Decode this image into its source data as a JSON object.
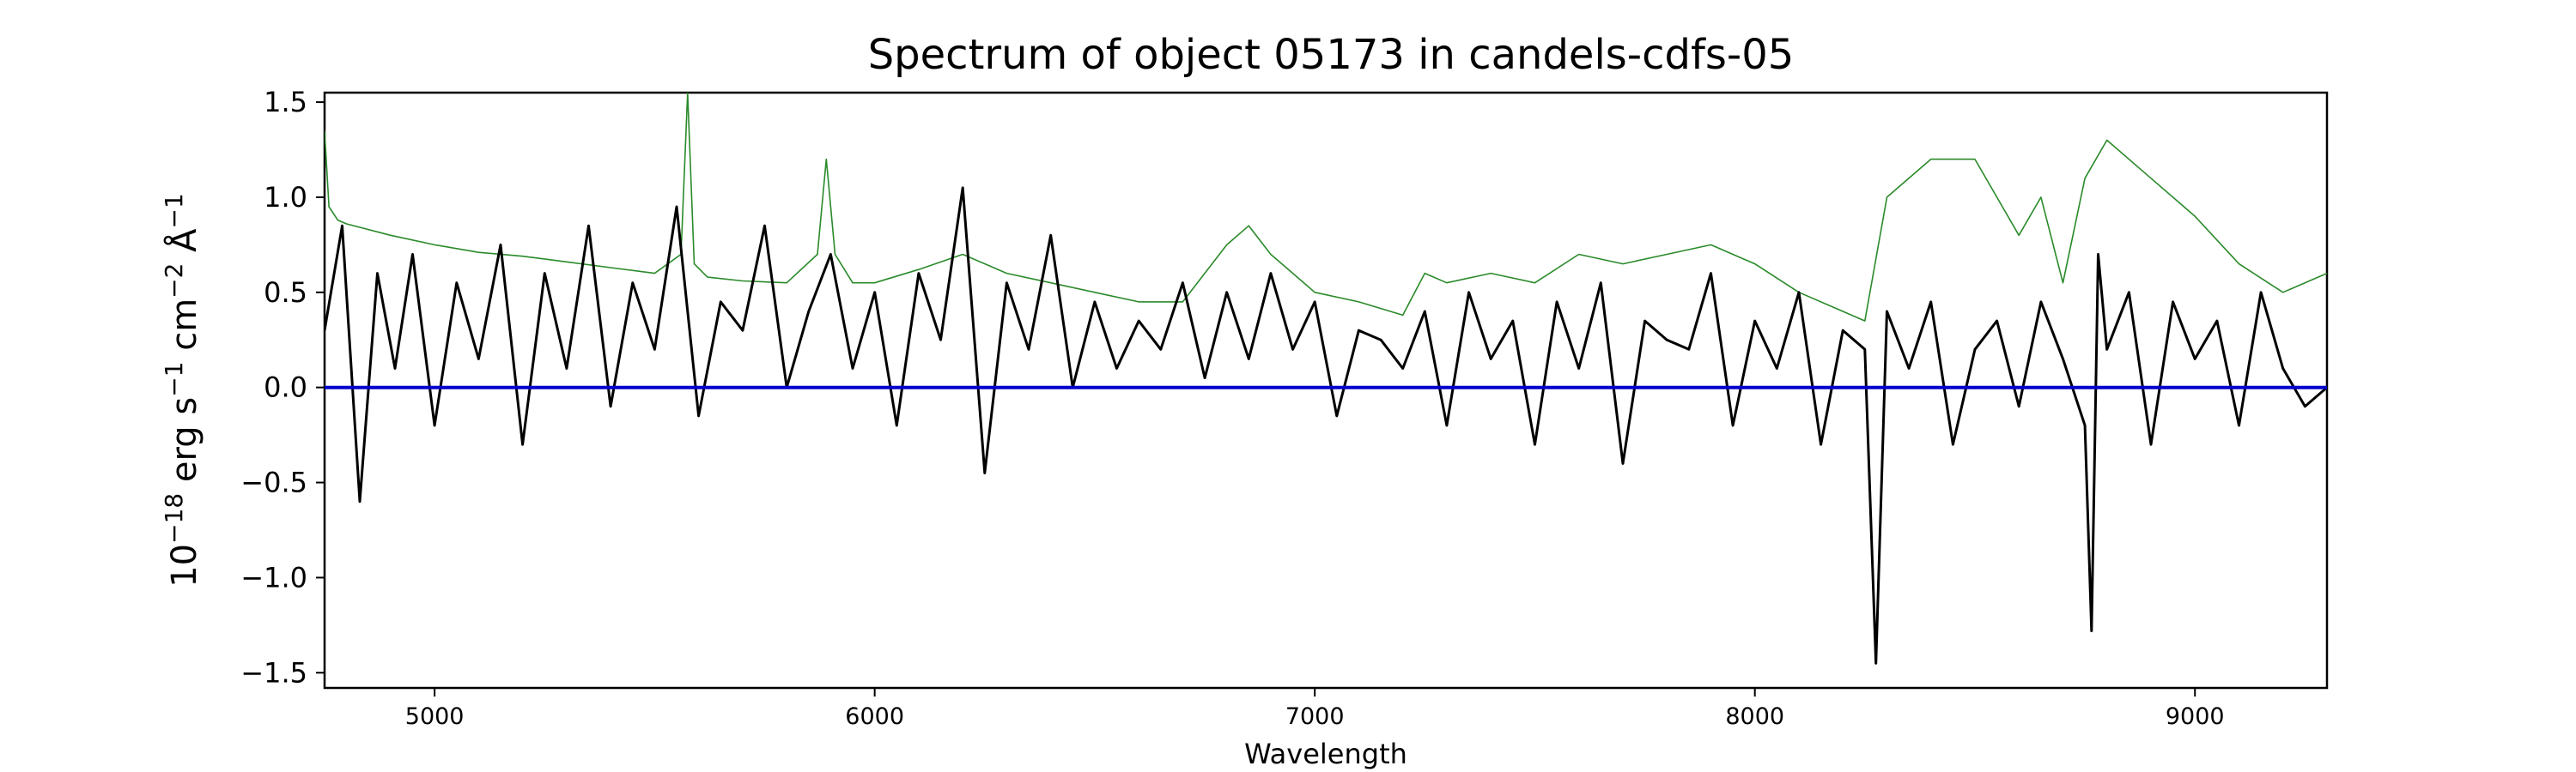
{
  "chart_data": {
    "type": "line",
    "title": "Spectrum of object 05173 in candels-cdfs-05",
    "xlabel": "Wavelength",
    "ylabel": {
      "base": "10",
      "exp": "−18",
      "text1": " erg s",
      "exp2": "−1",
      "text2": " cm",
      "exp3": "−2",
      "text3": " Å",
      "exp4": "−1"
    },
    "xlim": [
      4750,
      9300
    ],
    "ylim": [
      -1.58,
      1.55
    ],
    "xticks": [
      5000,
      6000,
      7000,
      8000,
      9000
    ],
    "xtick_labels": [
      "5000",
      "6000",
      "7000",
      "8000",
      "9000"
    ],
    "yticks": [
      -1.5,
      -1.0,
      -0.5,
      0.0,
      0.5,
      1.0,
      1.5
    ],
    "ytick_labels": [
      "−1.5",
      "−1.0",
      "−0.5",
      "0.0",
      "0.5",
      "1.0",
      "1.5"
    ],
    "grid": false,
    "series": [
      {
        "role": "noise",
        "color": "#2a8a2a",
        "x": [
          4750,
          4760,
          4780,
          4800,
          4900,
          5000,
          5100,
          5200,
          5300,
          5400,
          5500,
          5560,
          5575,
          5590,
          5620,
          5700,
          5800,
          5870,
          5890,
          5910,
          5950,
          6000,
          6100,
          6200,
          6300,
          6400,
          6500,
          6600,
          6700,
          6800,
          6850,
          6900,
          6950,
          7000,
          7100,
          7200,
          7250,
          7300,
          7400,
          7500,
          7600,
          7700,
          7800,
          7900,
          8000,
          8100,
          8200,
          8250,
          8300,
          8400,
          8500,
          8600,
          8650,
          8700,
          8750,
          8800,
          8900,
          9000,
          9100,
          9200,
          9300
        ],
        "y": [
          1.35,
          0.95,
          0.88,
          0.86,
          0.8,
          0.75,
          0.71,
          0.69,
          0.66,
          0.63,
          0.6,
          0.7,
          1.55,
          0.65,
          0.58,
          0.56,
          0.55,
          0.7,
          1.2,
          0.7,
          0.55,
          0.55,
          0.62,
          0.7,
          0.6,
          0.55,
          0.5,
          0.45,
          0.45,
          0.75,
          0.85,
          0.7,
          0.6,
          0.5,
          0.45,
          0.38,
          0.6,
          0.55,
          0.6,
          0.55,
          0.7,
          0.65,
          0.7,
          0.75,
          0.65,
          0.5,
          0.4,
          0.35,
          1.0,
          1.2,
          1.2,
          0.8,
          1.0,
          0.55,
          1.1,
          1.3,
          1.1,
          0.9,
          0.65,
          0.5,
          0.6
        ]
      },
      {
        "role": "flux",
        "color": "#000000",
        "x": [
          4750,
          4790,
          4830,
          4870,
          4910,
          4950,
          5000,
          5050,
          5100,
          5150,
          5200,
          5250,
          5300,
          5350,
          5400,
          5450,
          5500,
          5550,
          5600,
          5650,
          5700,
          5750,
          5800,
          5850,
          5900,
          5950,
          6000,
          6050,
          6100,
          6150,
          6200,
          6250,
          6300,
          6350,
          6400,
          6450,
          6500,
          6550,
          6600,
          6650,
          6700,
          6750,
          6800,
          6850,
          6900,
          6950,
          7000,
          7050,
          7100,
          7150,
          7200,
          7250,
          7300,
          7350,
          7400,
          7450,
          7500,
          7550,
          7600,
          7650,
          7700,
          7750,
          7800,
          7850,
          7900,
          7950,
          8000,
          8050,
          8100,
          8150,
          8200,
          8250,
          8275,
          8300,
          8350,
          8400,
          8450,
          8500,
          8550,
          8600,
          8650,
          8700,
          8750,
          8765,
          8780,
          8800,
          8850,
          8900,
          8950,
          9000,
          9050,
          9100,
          9150,
          9200,
          9250,
          9300
        ],
        "y": [
          0.3,
          0.85,
          -0.6,
          0.6,
          0.1,
          0.7,
          -0.2,
          0.55,
          0.15,
          0.75,
          -0.3,
          0.6,
          0.1,
          0.85,
          -0.1,
          0.55,
          0.2,
          0.95,
          -0.15,
          0.45,
          0.3,
          0.85,
          0.0,
          0.4,
          0.7,
          0.1,
          0.5,
          -0.2,
          0.6,
          0.25,
          1.05,
          -0.45,
          0.55,
          0.2,
          0.8,
          0.0,
          0.45,
          0.1,
          0.35,
          0.2,
          0.55,
          0.05,
          0.5,
          0.15,
          0.6,
          0.2,
          0.45,
          -0.15,
          0.3,
          0.25,
          0.1,
          0.4,
          -0.2,
          0.5,
          0.15,
          0.35,
          -0.3,
          0.45,
          0.1,
          0.55,
          -0.4,
          0.35,
          0.25,
          0.2,
          0.6,
          -0.2,
          0.35,
          0.1,
          0.5,
          -0.3,
          0.3,
          0.2,
          -1.45,
          0.4,
          0.1,
          0.45,
          -0.3,
          0.2,
          0.35,
          -0.1,
          0.45,
          0.15,
          -0.2,
          -1.28,
          0.7,
          0.2,
          0.5,
          -0.3,
          0.45,
          0.15,
          0.35,
          -0.2,
          0.5,
          0.1,
          -0.1,
          0.0
        ]
      },
      {
        "role": "model",
        "color": "#0000cc",
        "x": [
          4750,
          9300
        ],
        "y": [
          0.0,
          0.0
        ]
      }
    ]
  }
}
